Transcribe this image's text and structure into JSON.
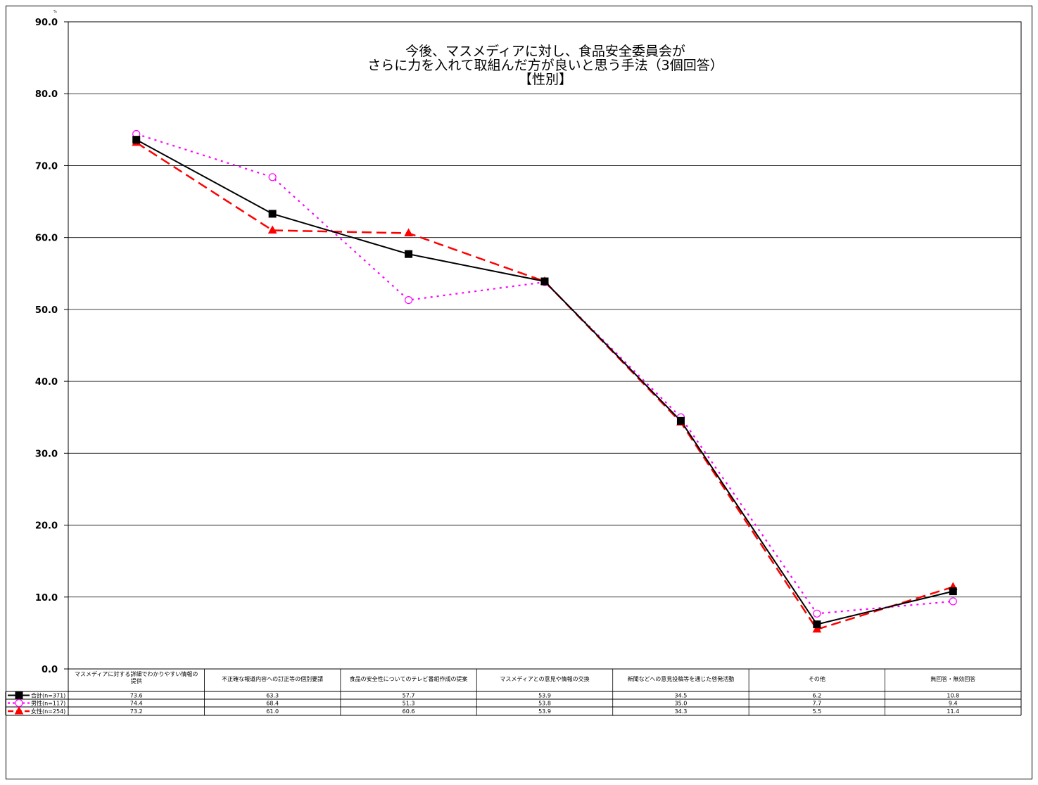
{
  "chart_data": {
    "type": "line",
    "title_lines": [
      "今後、マスメディアに対し、食品安全委員会が",
      "さらに力を入れて取組んだ方が良いと思う手法（3個回答）",
      "【性別】"
    ],
    "unit": "%",
    "ylim": [
      0,
      90
    ],
    "yticks": [
      "0.0",
      "10.0",
      "20.0",
      "30.0",
      "40.0",
      "50.0",
      "60.0",
      "70.0",
      "80.0",
      "90.0"
    ],
    "grid": true,
    "categories": [
      [
        "マスメディアに対する詳細でわかりやすい情報の",
        "提供"
      ],
      [
        "不正確な報道内容への訂正等の個別要請"
      ],
      [
        "食品の安全性についてのテレビ番組作成の提案"
      ],
      [
        "マスメディアとの意見や情報の交換"
      ],
      [
        "新聞などへの意見投稿等を通じた啓発活動"
      ],
      [
        "その他"
      ],
      [
        "無回答・無効回答"
      ]
    ],
    "series": [
      {
        "name": "合計(n=371)",
        "color": "#000000",
        "marker": "square",
        "values": [
          73.6,
          63.3,
          57.7,
          53.9,
          34.5,
          6.2,
          10.8
        ],
        "labels": [
          "73.6",
          "63.3",
          "57.7",
          "53.9",
          "34.5",
          "6.2",
          "10.8"
        ]
      },
      {
        "name": "男性(n=117)",
        "color": "#ff00ff",
        "marker": "circle",
        "values": [
          74.4,
          68.4,
          51.3,
          53.8,
          35.0,
          7.7,
          9.4
        ],
        "labels": [
          "74.4",
          "68.4",
          "51.3",
          "53.8",
          "35.0",
          "7.7",
          "9.4"
        ]
      },
      {
        "name": "女性(n=254)",
        "color": "#ff0000",
        "marker": "triangle",
        "values": [
          73.2,
          61.0,
          60.6,
          53.9,
          34.3,
          5.5,
          11.4
        ],
        "labels": [
          "73.2",
          "61.0",
          "60.6",
          "53.9",
          "34.3",
          "5.5",
          "11.4"
        ]
      }
    ]
  }
}
